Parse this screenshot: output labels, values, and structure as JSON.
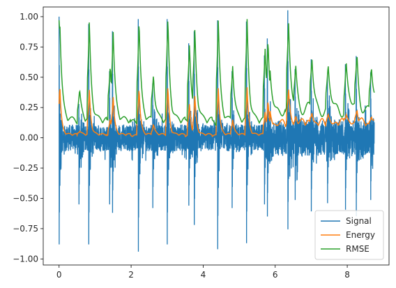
{
  "chart_data": {
    "type": "line",
    "title": "",
    "xlabel": "",
    "ylabel": "",
    "xlim": [
      -0.44,
      9.16
    ],
    "ylim": [
      -1.05,
      1.08
    ],
    "x_ticks": [
      0,
      2,
      4,
      6,
      8
    ],
    "y_ticks": [
      -1.0,
      -0.75,
      -0.5,
      -0.25,
      0.0,
      0.25,
      0.5,
      0.75,
      1.0
    ],
    "x_tick_labels": [
      "0",
      "2",
      "4",
      "6",
      "8"
    ],
    "y_tick_labels": [
      "−1.00",
      "−0.75",
      "−0.50",
      "−0.25",
      "0.00",
      "0.25",
      "0.50",
      "0.75",
      "1.00"
    ],
    "grid": false,
    "legend_position": "lower right",
    "beats": [
      {
        "t": 0.0,
        "amp": 1.0,
        "low": -0.88
      },
      {
        "t": 0.55,
        "amp": 0.28,
        "low": -0.55
      },
      {
        "t": 0.82,
        "amp": 0.94,
        "low": -0.88
      },
      {
        "t": 1.4,
        "amp": 0.55,
        "low": -0.55
      },
      {
        "t": 1.48,
        "amp": 0.88,
        "low": -0.62
      },
      {
        "t": 2.2,
        "amp": 0.98,
        "low": -0.94
      },
      {
        "t": 2.6,
        "amp": 0.45,
        "low": -0.58
      },
      {
        "t": 3.0,
        "amp": 0.98,
        "low": -0.88
      },
      {
        "t": 3.6,
        "amp": 0.78,
        "low": -0.56
      },
      {
        "t": 3.75,
        "amp": 0.88,
        "low": -0.72
      },
      {
        "t": 4.4,
        "amp": 0.97,
        "low": -0.92
      },
      {
        "t": 4.8,
        "amp": 0.55,
        "low": -0.58
      },
      {
        "t": 5.2,
        "amp": 0.96,
        "low": -0.87
      },
      {
        "t": 5.7,
        "amp": 0.68,
        "low": -0.55
      },
      {
        "t": 5.78,
        "amp": 0.82,
        "low": -0.65
      },
      {
        "t": 6.35,
        "amp": 0.78,
        "low": -0.56
      },
      {
        "t": 6.55,
        "amp": 0.42,
        "low": -0.38
      },
      {
        "t": 7.0,
        "amp": 0.48,
        "low": -0.45
      },
      {
        "t": 7.45,
        "amp": 0.38,
        "low": -0.4
      },
      {
        "t": 7.95,
        "amp": 0.45,
        "low": -0.44
      },
      {
        "t": 8.25,
        "amp": 0.5,
        "low": -0.48
      },
      {
        "t": 8.65,
        "amp": 0.4,
        "low": -0.38
      }
    ],
    "duration": 8.75,
    "series": [
      {
        "name": "Signal",
        "color": "#1f77b4"
      },
      {
        "name": "Energy",
        "color": "#ff7f0e"
      },
      {
        "name": "RMSE",
        "color": "#2ca02c"
      }
    ]
  }
}
